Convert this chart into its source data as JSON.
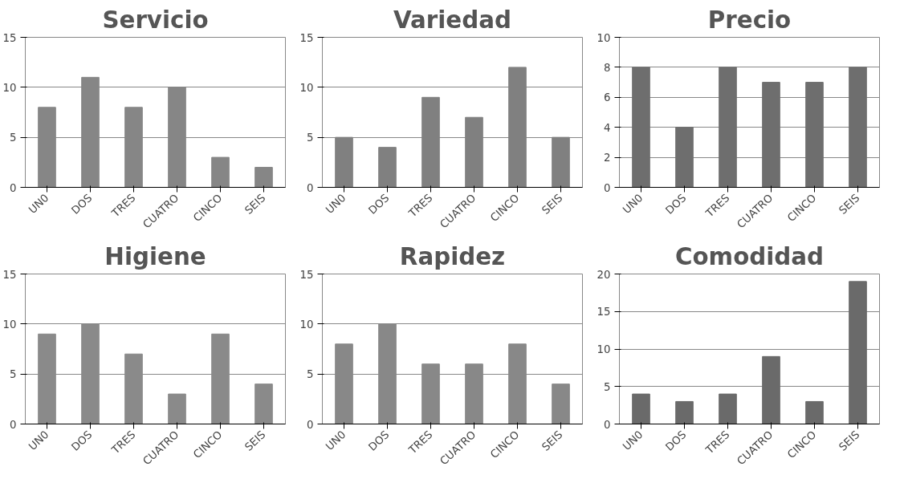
{
  "chart_data": [
    {
      "type": "bar",
      "title": "Servicio",
      "categories": [
        "UN0",
        "DOS",
        "TRES",
        "CUATRO",
        "CINCO",
        "SEIS"
      ],
      "values": [
        8,
        11,
        8,
        10,
        3,
        2
      ],
      "color": "#868686",
      "ylim": [
        0,
        15
      ],
      "yticks": [
        0,
        5,
        10,
        15
      ],
      "grid": "y"
    },
    {
      "type": "bar",
      "title": "Variedad",
      "categories": [
        "UN0",
        "DOS",
        "TRES",
        "CUATRO",
        "CINCO",
        "SEIS"
      ],
      "values": [
        5,
        4,
        9,
        7,
        12,
        5
      ],
      "color": "#808080",
      "ylim": [
        0,
        15
      ],
      "yticks": [
        0,
        5,
        10,
        15
      ],
      "grid": "y"
    },
    {
      "type": "bar",
      "title": "Precio",
      "categories": [
        "UN0",
        "DOS",
        "TRES",
        "CUATRO",
        "CINCO",
        "SEIS"
      ],
      "values": [
        8,
        4,
        8,
        7,
        7,
        8
      ],
      "color": "#6e6e6e",
      "ylim": [
        0,
        10
      ],
      "yticks": [
        0,
        2,
        4,
        6,
        8,
        10
      ],
      "grid": "y"
    },
    {
      "type": "bar",
      "title": "Higiene",
      "categories": [
        "UN0",
        "DOS",
        "TRES",
        "CUATRO",
        "CINCO",
        "SEIS"
      ],
      "values": [
        9,
        10,
        7,
        3,
        9,
        4
      ],
      "color": "#8a8a8a",
      "ylim": [
        0,
        15
      ],
      "yticks": [
        0,
        5,
        10,
        15
      ],
      "grid": "y"
    },
    {
      "type": "bar",
      "title": "Rapidez",
      "categories": [
        "UN0",
        "DOS",
        "TRES",
        "CUATRO",
        "CINCO",
        "SEIS"
      ],
      "values": [
        8,
        10,
        6,
        6,
        8,
        4
      ],
      "color": "#888888",
      "ylim": [
        0,
        15
      ],
      "yticks": [
        0,
        5,
        10,
        15
      ],
      "grid": "y"
    },
    {
      "type": "bar",
      "title": "Comodidad",
      "categories": [
        "UN0",
        "DOS",
        "TRES",
        "CUATRO",
        "CINCO",
        "SEIS"
      ],
      "values": [
        4,
        3,
        4,
        9,
        3,
        19
      ],
      "color": "#6a6a6a",
      "ylim": [
        0,
        20
      ],
      "yticks": [
        0,
        5,
        10,
        15,
        20
      ],
      "grid": "y"
    }
  ]
}
